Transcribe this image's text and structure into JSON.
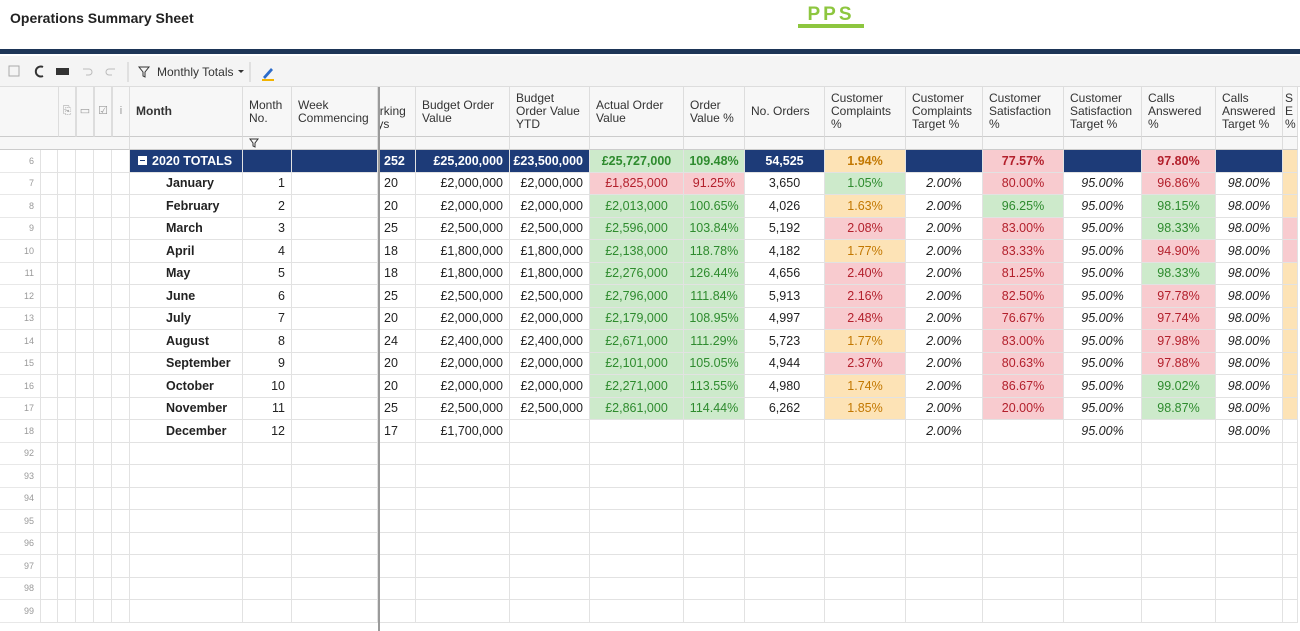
{
  "header": {
    "title": "Operations Summary Sheet",
    "logo": "PPS"
  },
  "toolbar": {
    "filter": "Monthly Totals"
  },
  "columns": [
    "Month",
    "Month No.",
    "Week Commencing",
    "No. Working Days",
    "Budget Order Value",
    "Budget Order Value YTD",
    "Actual Order Value",
    "Order Value %",
    "No. Orders",
    "Customer Complaints %",
    "Customer Complaints Target %",
    "Customer Satisfaction %",
    "Customer Satisfaction Target %",
    "Calls Answered %",
    "Calls Answered Target %",
    "S E %"
  ],
  "rows": [
    {
      "num": "6",
      "cells": [
        "2020 TOTALS",
        null,
        null,
        "252",
        "£25,200,000",
        "£23,500,000",
        "£25,727,000",
        "109.48%",
        "54,525",
        "1.94%",
        null,
        "77.57%",
        null,
        "97.80%",
        null,
        null
      ],
      "colors": [
        "navy",
        "navy",
        "navy",
        "navy",
        "navy",
        "navy",
        "green",
        "green",
        "navy",
        "amber",
        "navy",
        "red",
        "navy",
        "red",
        "navy",
        "amber"
      ]
    },
    {
      "num": "7",
      "cells": [
        "January",
        "1",
        null,
        "20",
        "£2,000,000",
        "£2,000,000",
        "£1,825,000",
        "91.25%",
        "3,650",
        "1.05%",
        "2.00%",
        "80.00%",
        "95.00%",
        "96.86%",
        "98.00%",
        null
      ],
      "colors": [
        null,
        null,
        null,
        null,
        null,
        null,
        "red",
        "red",
        null,
        "green",
        null,
        "red",
        null,
        "red",
        null,
        "amber"
      ]
    },
    {
      "num": "8",
      "cells": [
        "February",
        "2",
        null,
        "20",
        "£2,000,000",
        "£2,000,000",
        "£2,013,000",
        "100.65%",
        "4,026",
        "1.63%",
        "2.00%",
        "96.25%",
        "95.00%",
        "98.15%",
        "98.00%",
        null
      ],
      "colors": [
        null,
        null,
        null,
        null,
        null,
        null,
        "green",
        "green",
        null,
        "amber",
        null,
        "green",
        null,
        "green",
        null,
        "amber"
      ]
    },
    {
      "num": "9",
      "cells": [
        "March",
        "3",
        null,
        "25",
        "£2,500,000",
        "£2,500,000",
        "£2,596,000",
        "103.84%",
        "5,192",
        "2.08%",
        "2.00%",
        "83.00%",
        "95.00%",
        "98.33%",
        "98.00%",
        null
      ],
      "colors": [
        null,
        null,
        null,
        null,
        null,
        null,
        "green",
        "green",
        null,
        "red",
        null,
        "red",
        null,
        "green",
        null,
        "red"
      ]
    },
    {
      "num": "10",
      "cells": [
        "April",
        "4",
        null,
        "18",
        "£1,800,000",
        "£1,800,000",
        "£2,138,000",
        "118.78%",
        "4,182",
        "1.77%",
        "2.00%",
        "83.33%",
        "95.00%",
        "94.90%",
        "98.00%",
        null
      ],
      "colors": [
        null,
        null,
        null,
        null,
        null,
        null,
        "green",
        "green",
        null,
        "amber",
        null,
        "red",
        null,
        "red",
        null,
        "red"
      ]
    },
    {
      "num": "11",
      "cells": [
        "May",
        "5",
        null,
        "18",
        "£1,800,000",
        "£1,800,000",
        "£2,276,000",
        "126.44%",
        "4,656",
        "2.40%",
        "2.00%",
        "81.25%",
        "95.00%",
        "98.33%",
        "98.00%",
        null
      ],
      "colors": [
        null,
        null,
        null,
        null,
        null,
        null,
        "green",
        "green",
        null,
        "red",
        null,
        "red",
        null,
        "green",
        null,
        "amber"
      ]
    },
    {
      "num": "12",
      "cells": [
        "June",
        "6",
        null,
        "25",
        "£2,500,000",
        "£2,500,000",
        "£2,796,000",
        "111.84%",
        "5,913",
        "2.16%",
        "2.00%",
        "82.50%",
        "95.00%",
        "97.78%",
        "98.00%",
        null
      ],
      "colors": [
        null,
        null,
        null,
        null,
        null,
        null,
        "green",
        "green",
        null,
        "red",
        null,
        "red",
        null,
        "red",
        null,
        "amber"
      ]
    },
    {
      "num": "13",
      "cells": [
        "July",
        "7",
        null,
        "20",
        "£2,000,000",
        "£2,000,000",
        "£2,179,000",
        "108.95%",
        "4,997",
        "2.48%",
        "2.00%",
        "76.67%",
        "95.00%",
        "97.74%",
        "98.00%",
        null
      ],
      "colors": [
        null,
        null,
        null,
        null,
        null,
        null,
        "green",
        "green",
        null,
        "red",
        null,
        "red",
        null,
        "red",
        null,
        "amber"
      ]
    },
    {
      "num": "14",
      "cells": [
        "August",
        "8",
        null,
        "24",
        "£2,400,000",
        "£2,400,000",
        "£2,671,000",
        "111.29%",
        "5,723",
        "1.77%",
        "2.00%",
        "83.00%",
        "95.00%",
        "97.98%",
        "98.00%",
        null
      ],
      "colors": [
        null,
        null,
        null,
        null,
        null,
        null,
        "green",
        "green",
        null,
        "amber",
        null,
        "red",
        null,
        "red",
        null,
        "amber"
      ]
    },
    {
      "num": "15",
      "cells": [
        "September",
        "9",
        null,
        "20",
        "£2,000,000",
        "£2,000,000",
        "£2,101,000",
        "105.05%",
        "4,944",
        "2.37%",
        "2.00%",
        "80.63%",
        "95.00%",
        "97.88%",
        "98.00%",
        null
      ],
      "colors": [
        null,
        null,
        null,
        null,
        null,
        null,
        "green",
        "green",
        null,
        "red",
        null,
        "red",
        null,
        "red",
        null,
        "amber"
      ]
    },
    {
      "num": "16",
      "cells": [
        "October",
        "10",
        null,
        "20",
        "£2,000,000",
        "£2,000,000",
        "£2,271,000",
        "113.55%",
        "4,980",
        "1.74%",
        "2.00%",
        "86.67%",
        "95.00%",
        "99.02%",
        "98.00%",
        null
      ],
      "colors": [
        null,
        null,
        null,
        null,
        null,
        null,
        "green",
        "green",
        null,
        "amber",
        null,
        "red",
        null,
        "green",
        null,
        "amber"
      ]
    },
    {
      "num": "17",
      "cells": [
        "November",
        "11",
        null,
        "25",
        "£2,500,000",
        "£2,500,000",
        "£2,861,000",
        "114.44%",
        "6,262",
        "1.85%",
        "2.00%",
        "20.00%",
        "95.00%",
        "98.87%",
        "98.00%",
        null
      ],
      "colors": [
        null,
        null,
        null,
        null,
        null,
        null,
        "green",
        "green",
        null,
        "amber",
        null,
        "red",
        null,
        "green",
        null,
        "amber"
      ]
    },
    {
      "num": "18",
      "cells": [
        "December",
        "12",
        null,
        "17",
        "£1,700,000",
        null,
        null,
        null,
        null,
        null,
        "2.00%",
        null,
        "95.00%",
        null,
        "98.00%",
        null
      ],
      "colors": [
        null,
        null,
        null,
        null,
        null,
        null,
        null,
        null,
        null,
        null,
        null,
        null,
        null,
        null,
        null,
        null
      ]
    }
  ],
  "empty_rows": [
    "92",
    "93",
    "94",
    "95",
    "96",
    "97",
    "98",
    "99"
  ]
}
